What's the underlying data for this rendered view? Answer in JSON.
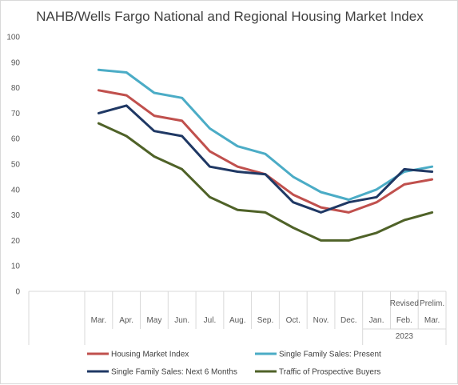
{
  "chart_data": {
    "type": "line",
    "title": "NAHB/Wells Fargo National and Regional Housing Market Index",
    "categories": [
      "Mar.",
      "Apr.",
      "May",
      "Jun.",
      "Jul.",
      "Aug.",
      "Sep.",
      "Oct.",
      "Nov.",
      "Dec.",
      "Jan.",
      "Feb.",
      "Mar."
    ],
    "category_annotations": [
      {
        "index": 11,
        "label": "Revised"
      },
      {
        "index": 12,
        "label": "Prelim."
      }
    ],
    "year_group": {
      "label": "2023",
      "start_index": 10,
      "end_index": 12
    },
    "ylim": [
      0,
      100
    ],
    "yticks": [
      0,
      10,
      20,
      30,
      40,
      50,
      60,
      70,
      80,
      90,
      100
    ],
    "grid": false,
    "legend_position": "bottom",
    "series": [
      {
        "name": "Housing Market Index",
        "color": "#c0504d",
        "values": [
          79,
          77,
          69,
          67,
          55,
          49,
          46,
          38,
          33,
          31,
          35,
          42,
          44
        ]
      },
      {
        "name": "Single Family Sales: Present",
        "color": "#4bacc6",
        "values": [
          87,
          86,
          78,
          76,
          64,
          57,
          54,
          45,
          39,
          36,
          40,
          47,
          49
        ]
      },
      {
        "name": "Single Family Sales: Next 6 Months",
        "color": "#1f3864",
        "values": [
          70,
          73,
          63,
          61,
          49,
          47,
          46,
          35,
          31,
          35,
          37,
          48,
          47
        ]
      },
      {
        "name": "Traffic of Prospective Buyers",
        "color": "#4f6228",
        "values": [
          66,
          61,
          53,
          48,
          37,
          32,
          31,
          25,
          20,
          20,
          23,
          28,
          31
        ]
      }
    ]
  }
}
